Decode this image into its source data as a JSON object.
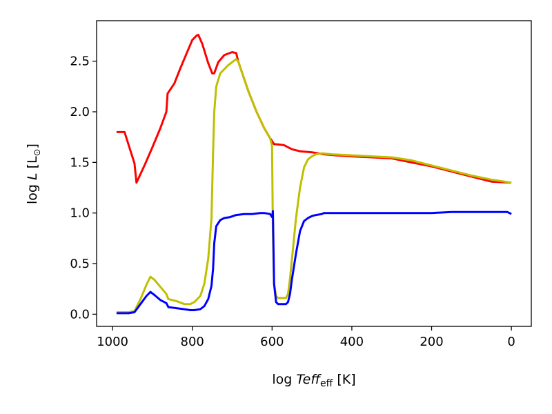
{
  "chart_data": {
    "type": "line",
    "title": "",
    "xlabel_parts": {
      "prefix": "log ",
      "var": "Teff",
      "sub": "eff",
      "suffix": " [K]"
    },
    "ylabel_parts": {
      "prefix": "log ",
      "var": "L",
      "suffix_open": " [L",
      "sun": "⊙",
      "suffix_close": "]"
    },
    "xlim": [
      1040,
      -50
    ],
    "ylim": [
      -0.12,
      2.9
    ],
    "x_inverted": true,
    "grid": false,
    "x_ticks": [
      {
        "value": 1000,
        "label": "1000"
      },
      {
        "value": 800,
        "label": "800"
      },
      {
        "value": 600,
        "label": "600"
      },
      {
        "value": 400,
        "label": "400"
      },
      {
        "value": 200,
        "label": "200"
      },
      {
        "value": 0,
        "label": "0"
      }
    ],
    "y_ticks": [
      {
        "value": 0.0,
        "label": "0.0"
      },
      {
        "value": 0.5,
        "label": "0.5"
      },
      {
        "value": 1.0,
        "label": "1.0"
      },
      {
        "value": 1.5,
        "label": "1.5"
      },
      {
        "value": 2.0,
        "label": "2.0"
      },
      {
        "value": 2.5,
        "label": "2.5"
      }
    ],
    "series": [
      {
        "color": "#ff0000",
        "x": [
          990,
          970,
          945,
          940,
          920,
          900,
          880,
          865,
          862,
          845,
          830,
          815,
          800,
          790,
          785,
          775,
          760,
          750,
          745,
          735,
          720,
          700,
          690,
          685,
          660,
          640,
          620,
          605,
          595,
          590,
          570,
          550,
          530,
          500,
          470,
          440,
          400,
          350,
          300,
          250,
          200,
          150,
          100,
          50,
          0
        ],
        "y": [
          1.8,
          1.8,
          1.49,
          1.3,
          1.47,
          1.65,
          1.84,
          2.0,
          2.18,
          2.28,
          2.43,
          2.57,
          2.71,
          2.75,
          2.76,
          2.67,
          2.48,
          2.38,
          2.38,
          2.49,
          2.56,
          2.59,
          2.58,
          2.5,
          2.21,
          2.01,
          1.84,
          1.74,
          1.68,
          1.68,
          1.67,
          1.63,
          1.61,
          1.6,
          1.58,
          1.57,
          1.56,
          1.55,
          1.54,
          1.5,
          1.46,
          1.41,
          1.36,
          1.31,
          1.3
        ]
      },
      {
        "color": "#bfbf00",
        "x": [
          990,
          960,
          945,
          930,
          915,
          905,
          895,
          880,
          865,
          860,
          840,
          820,
          805,
          795,
          780,
          770,
          760,
          752,
          748,
          745,
          740,
          730,
          710,
          690,
          685,
          660,
          640,
          620,
          605,
          600,
          598,
          595,
          590,
          585,
          575,
          565,
          560,
          555,
          550,
          540,
          530,
          520,
          510,
          500,
          490,
          475,
          450,
          400,
          350,
          300,
          250,
          200,
          150,
          100,
          50,
          0
        ],
        "y": [
          0.02,
          0.02,
          0.03,
          0.15,
          0.29,
          0.37,
          0.34,
          0.27,
          0.2,
          0.15,
          0.13,
          0.1,
          0.1,
          0.12,
          0.18,
          0.3,
          0.55,
          0.95,
          1.6,
          2.0,
          2.25,
          2.38,
          2.46,
          2.52,
          2.5,
          2.21,
          2.01,
          1.84,
          1.74,
          1.66,
          0.8,
          0.3,
          0.18,
          0.16,
          0.16,
          0.16,
          0.2,
          0.35,
          0.55,
          0.95,
          1.25,
          1.45,
          1.53,
          1.56,
          1.58,
          1.59,
          1.58,
          1.57,
          1.56,
          1.55,
          1.52,
          1.47,
          1.42,
          1.37,
          1.33,
          1.3
        ]
      },
      {
        "color": "#0000ff",
        "x": [
          990,
          960,
          945,
          930,
          915,
          905,
          895,
          880,
          865,
          860,
          840,
          820,
          805,
          795,
          780,
          770,
          760,
          752,
          748,
          745,
          740,
          730,
          720,
          705,
          690,
          670,
          650,
          630,
          620,
          605,
          600,
          598,
          595,
          590,
          585,
          575,
          565,
          560,
          555,
          550,
          540,
          530,
          520,
          510,
          500,
          490,
          475,
          470,
          450,
          400,
          350,
          300,
          250,
          200,
          150,
          100,
          50,
          10,
          0
        ],
        "y": [
          0.01,
          0.01,
          0.02,
          0.1,
          0.18,
          0.22,
          0.19,
          0.14,
          0.11,
          0.07,
          0.06,
          0.05,
          0.04,
          0.04,
          0.05,
          0.08,
          0.15,
          0.28,
          0.45,
          0.7,
          0.87,
          0.93,
          0.95,
          0.96,
          0.98,
          0.99,
          0.99,
          1.0,
          1.0,
          0.99,
          0.96,
          1.02,
          0.3,
          0.12,
          0.1,
          0.1,
          0.1,
          0.12,
          0.2,
          0.35,
          0.6,
          0.82,
          0.92,
          0.95,
          0.97,
          0.98,
          0.99,
          1.0,
          1.0,
          1.0,
          1.0,
          1.0,
          1.0,
          1.0,
          1.01,
          1.01,
          1.01,
          1.01,
          0.99
        ]
      }
    ]
  }
}
